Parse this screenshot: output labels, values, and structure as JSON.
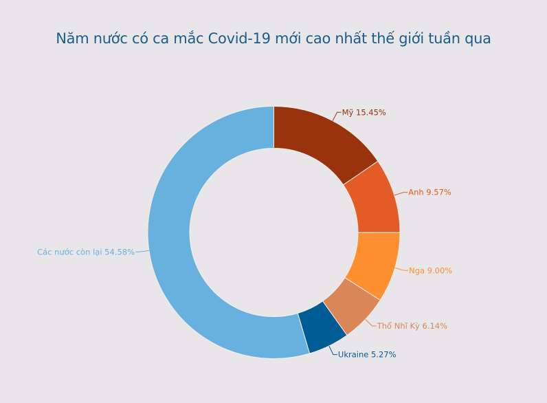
{
  "chart_data": {
    "type": "pie",
    "title": "Năm nước có ca mắc Covid-19 mới cao nhất thế giới tuần qua",
    "donut": true,
    "slices": [
      {
        "label": "Mỹ",
        "value": 15.45,
        "display": "Mỹ 15.45%",
        "color": "#98330d"
      },
      {
        "label": "Anh",
        "value": 9.57,
        "display": "Anh 9.57%",
        "color": "#e35b26"
      },
      {
        "label": "Nga",
        "value": 9.0,
        "display": "Nga 9.00%",
        "color": "#fd8f31"
      },
      {
        "label": "Thổ Nhĩ Kỳ",
        "value": 6.14,
        "display": "Thổ Nhĩ Kỳ 6.14%",
        "color": "#d98659"
      },
      {
        "label": "Ukraine",
        "value": 5.27,
        "display": "Ukraine 5.27%",
        "color": "#015b94"
      },
      {
        "label": "Các nước còn lại",
        "value": 54.58,
        "display": "Các nước còn lại 54.58%",
        "color": "#68b1de"
      }
    ],
    "label_colors": [
      "#98330d",
      "#e35b26",
      "#fd8f31",
      "#d98659",
      "#015b94",
      "#68b1de"
    ]
  }
}
